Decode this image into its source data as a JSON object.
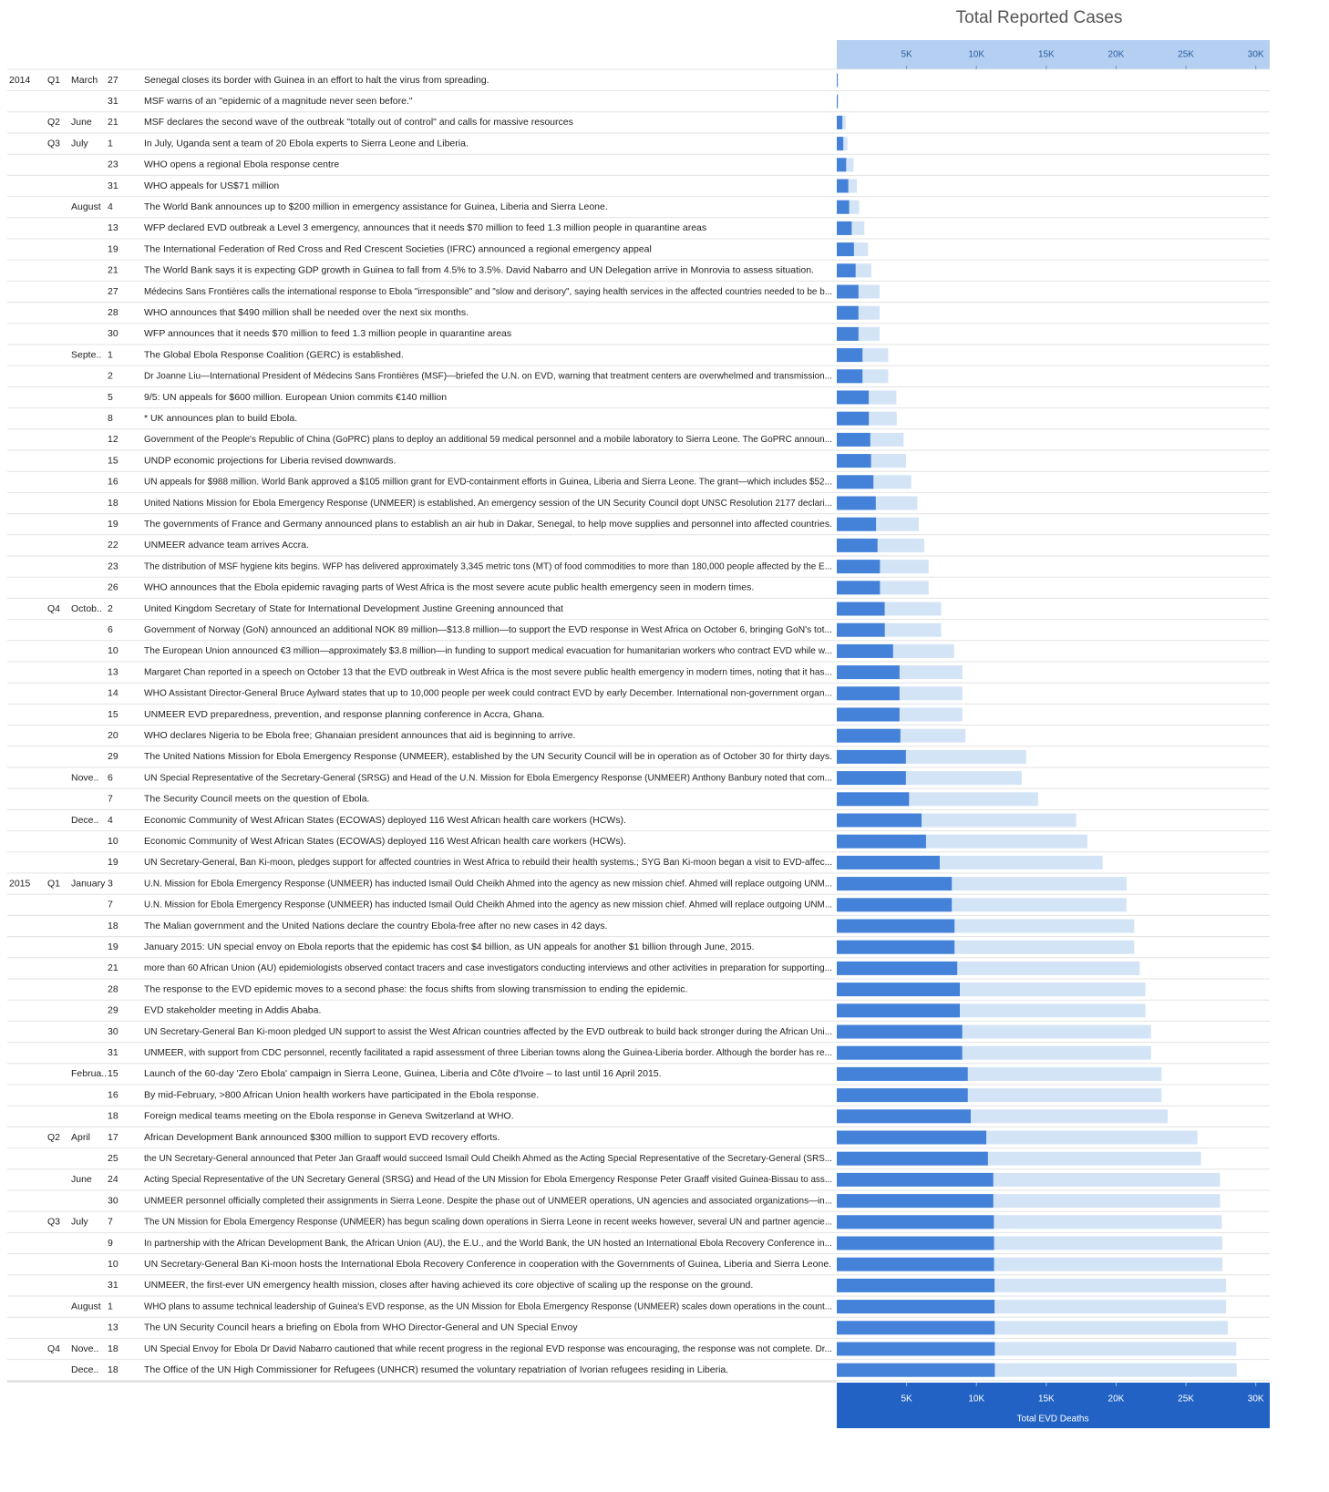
{
  "chart_data": {
    "type": "bar",
    "orientation": "horizontal",
    "rows": [
      {
        "year": "2014",
        "quarter": "Q1",
        "month": "March",
        "day": 27,
        "event": "Senegal closes its border with Guinea in an effort to halt the virus from spreading."
      },
      {
        "year": null,
        "quarter": null,
        "month": null,
        "day": 31,
        "event": "MSF warns of an \"epidemic of a magnitude never seen before.\""
      },
      {
        "year": null,
        "quarter": "Q2",
        "month": "June",
        "day": 21,
        "event": "MSF declares the second wave of the outbreak \"totally out of control\" and calls for massive resources"
      },
      {
        "year": null,
        "quarter": "Q3",
        "month": "July",
        "day": 1,
        "event": "In July, Uganda sent a team of 20 Ebola experts to Sierra Leone and Liberia."
      },
      {
        "year": null,
        "quarter": null,
        "month": null,
        "day": 23,
        "event": "WHO opens a regional Ebola response centre"
      },
      {
        "year": null,
        "quarter": null,
        "month": null,
        "day": 31,
        "event": "WHO appeals for US$71 million"
      },
      {
        "year": null,
        "quarter": null,
        "month": "August",
        "day": 4,
        "event": "The World Bank announces up to $200 million in emergency assistance for Guinea, Liberia and Sierra Leone."
      },
      {
        "year": null,
        "quarter": null,
        "month": null,
        "day": 13,
        "event": "WFP declared EVD outbreak a Level 3 emergency, announces that it needs $70 million to feed 1.3 million people in quarantine areas"
      },
      {
        "year": null,
        "quarter": null,
        "month": null,
        "day": 19,
        "event": "The International Federation of Red Cross and Red Crescent Societies (IFRC) announced a regional emergency appeal"
      },
      {
        "year": null,
        "quarter": null,
        "month": null,
        "day": 21,
        "event": "The World Bank says it is expecting GDP growth in Guinea to fall from 4.5% to 3.5%. David Nabarro and UN Delegation arrive in Monrovia to assess situation."
      },
      {
        "year": null,
        "quarter": null,
        "month": null,
        "day": 27,
        "event": "Médecins Sans Frontières calls the international response to Ebola \"irresponsible\" and \"slow and derisory\", saying health services in the affected countries needed to be b..."
      },
      {
        "year": null,
        "quarter": null,
        "month": null,
        "day": 28,
        "event": "WHO announces that $490 million shall be needed over the next six months."
      },
      {
        "year": null,
        "quarter": null,
        "month": null,
        "day": 30,
        "event": "WFP announces that it needs $70 million to feed 1.3 million people in quarantine areas"
      },
      {
        "year": null,
        "quarter": null,
        "month": "Septe..",
        "day": 1,
        "event": "The Global Ebola Response Coalition (GERC) is established."
      },
      {
        "year": null,
        "quarter": null,
        "month": null,
        "day": 2,
        "event": "Dr Joanne Liu—International President of Médecins Sans Frontières (MSF)—briefed the U.N. on EVD, warning that treatment centers are overwhelmed and transmission..."
      },
      {
        "year": null,
        "quarter": null,
        "month": null,
        "day": 5,
        "event": "9/5: UN appeals for $600 million. European Union commits €140 million"
      },
      {
        "year": null,
        "quarter": null,
        "month": null,
        "day": 8,
        "event": "* UK announces plan to build Ebola."
      },
      {
        "year": null,
        "quarter": null,
        "month": null,
        "day": 12,
        "event": "Government of the People's Republic of China (GoPRC) plans to deploy an additional 59 medical personnel and a mobile laboratory to Sierra Leone. The GoPRC announ..."
      },
      {
        "year": null,
        "quarter": null,
        "month": null,
        "day": 15,
        "event": "UNDP economic projections for Liberia revised downwards."
      },
      {
        "year": null,
        "quarter": null,
        "month": null,
        "day": 16,
        "event": "UN appeals for $988 million. World Bank approved a $105 million grant for EVD-containment efforts in Guinea, Liberia and Sierra Leone. The grant—which includes $52..."
      },
      {
        "year": null,
        "quarter": null,
        "month": null,
        "day": 18,
        "event": "United Nations Mission for Ebola Emergency Response (UNMEER) is established. An emergency session of the UN Security Council dopt UNSC Resolution 2177 declari..."
      },
      {
        "year": null,
        "quarter": null,
        "month": null,
        "day": 19,
        "event": "The governments of France and Germany announced plans to establish an air hub in Dakar, Senegal, to help move supplies and personnel into affected countries."
      },
      {
        "year": null,
        "quarter": null,
        "month": null,
        "day": 22,
        "event": "UNMEER advance team arrives Accra."
      },
      {
        "year": null,
        "quarter": null,
        "month": null,
        "day": 23,
        "event": "The distribution of MSF hygiene kits begins. WFP has delivered approximately 3,345 metric tons (MT) of food commodities to more than 180,000 people affected by the E..."
      },
      {
        "year": null,
        "quarter": null,
        "month": null,
        "day": 26,
        "event": "WHO announces that the Ebola epidemic ravaging parts of West Africa is the most severe acute public health emergency seen in modern times."
      },
      {
        "year": null,
        "quarter": "Q4",
        "month": "Octob..",
        "day": 2,
        "event": "United Kingdom Secretary of State for International Development Justine Greening announced that"
      },
      {
        "year": null,
        "quarter": null,
        "month": null,
        "day": 6,
        "event": "Government of Norway (GoN) announced an additional NOK 89 million—$13.8 million—to support the EVD response in West Africa on October 6, bringing GoN's tot..."
      },
      {
        "year": null,
        "quarter": null,
        "month": null,
        "day": 10,
        "event": "The European Union announced €3 million—approximately $3.8 million—in funding to support medical evacuation for humanitarian workers who contract EVD while w..."
      },
      {
        "year": null,
        "quarter": null,
        "month": null,
        "day": 13,
        "event": "Margaret Chan reported in a speech on October 13 that the EVD outbreak in West Africa is the most severe public health emergency in modern times, noting that it has..."
      },
      {
        "year": null,
        "quarter": null,
        "month": null,
        "day": 14,
        "event": "WHO Assistant Director-General Bruce Aylward states that up to 10,000 people per week could contract EVD by early December. International non-government organ..."
      },
      {
        "year": null,
        "quarter": null,
        "month": null,
        "day": 15,
        "event": "UNMEER EVD preparedness, prevention, and response planning conference in Accra, Ghana."
      },
      {
        "year": null,
        "quarter": null,
        "month": null,
        "day": 20,
        "event": "WHO declares Nigeria to be Ebola free; Ghanaian president announces that aid is beginning to arrive."
      },
      {
        "year": null,
        "quarter": null,
        "month": null,
        "day": 29,
        "event": "The United Nations Mission for Ebola Emergency Response (UNMEER), established by the UN Security Council will be in operation as of October 30 for thirty days."
      },
      {
        "year": null,
        "quarter": null,
        "month": "Nove..",
        "day": 6,
        "event": "UN Special Representative of the Secretary-General (SRSG) and Head of the U.N. Mission for Ebola Emergency Response (UNMEER) Anthony Banbury noted that com..."
      },
      {
        "year": null,
        "quarter": null,
        "month": null,
        "day": 7,
        "event": "The Security Council meets on the question of Ebola."
      },
      {
        "year": null,
        "quarter": null,
        "month": "Dece..",
        "day": 4,
        "event": "Economic Community of West African States (ECOWAS) deployed 116 West African health care workers (HCWs)."
      },
      {
        "year": null,
        "quarter": null,
        "month": null,
        "day": 10,
        "event": "Economic Community of West African States (ECOWAS) deployed 116 West African health care workers (HCWs)."
      },
      {
        "year": null,
        "quarter": null,
        "month": null,
        "day": 19,
        "event": "UN Secretary-General, Ban Ki-moon, pledges support for affected countries in West Africa to rebuild their health systems.; SYG Ban Ki-moon began a visit to EVD-affec..."
      },
      {
        "year": "2015",
        "quarter": "Q1",
        "month": "January",
        "day": 3,
        "event": "U.N. Mission for Ebola Emergency Response (UNMEER) has inducted Ismail Ould Cheikh Ahmed into the agency as new mission chief. Ahmed will replace outgoing UNM..."
      },
      {
        "year": null,
        "quarter": null,
        "month": null,
        "day": 7,
        "event": "U.N. Mission for Ebola Emergency Response (UNMEER) has inducted Ismail Ould Cheikh Ahmed into the agency as new mission chief. Ahmed will replace outgoing UNM..."
      },
      {
        "year": null,
        "quarter": null,
        "month": null,
        "day": 18,
        "event": "The Malian government and the United Nations declare the country Ebola-free after no new cases in 42 days."
      },
      {
        "year": null,
        "quarter": null,
        "month": null,
        "day": 19,
        "event": "January 2015: UN special envoy on Ebola reports that the epidemic has cost $4 billion, as UN appeals for another $1 billion through June, 2015."
      },
      {
        "year": null,
        "quarter": null,
        "month": null,
        "day": 21,
        "event": "more than 60 African Union (AU) epidemiologists observed contact tracers and case investigators conducting interviews and other activities in preparation for supporting..."
      },
      {
        "year": null,
        "quarter": null,
        "month": null,
        "day": 28,
        "event": "The response to the EVD epidemic moves to a second phase: the focus shifts from slowing transmission to ending the epidemic."
      },
      {
        "year": null,
        "quarter": null,
        "month": null,
        "day": 29,
        "event": "EVD stakeholder meeting in Addis Ababa."
      },
      {
        "year": null,
        "quarter": null,
        "month": null,
        "day": 30,
        "event": "UN Secretary-General Ban Ki-moon pledged UN support to assist the West African countries affected by the EVD outbreak to build back stronger during the African Uni..."
      },
      {
        "year": null,
        "quarter": null,
        "month": null,
        "day": 31,
        "event": "UNMEER, with support from CDC personnel, recently facilitated a rapid assessment of three Liberian towns along the Guinea-Liberia border. Although the border has re..."
      },
      {
        "year": null,
        "quarter": null,
        "month": "Februa..",
        "day": 15,
        "event": "Launch of the 60-day 'Zero Ebola' campaign in Sierra Leone, Guinea, Liberia and Côte d'Ivoire – to last until 16 April 2015."
      },
      {
        "year": null,
        "quarter": null,
        "month": null,
        "day": 16,
        "event": "By mid-February, >800 African Union health workers have participated in the Ebola response."
      },
      {
        "year": null,
        "quarter": null,
        "month": null,
        "day": 18,
        "event": "Foreign medical teams meeting on the Ebola response in Geneva Switzerland at WHO."
      },
      {
        "year": null,
        "quarter": "Q2",
        "month": "April",
        "day": 17,
        "event": "African Development Bank announced $300 million to support EVD recovery efforts."
      },
      {
        "year": null,
        "quarter": null,
        "month": null,
        "day": 25,
        "event": "the UN Secretary-General announced that Peter Jan Graaff would succeed Ismail Ould Cheikh Ahmed as the Acting Special Representative of the Secretary-General (SRS..."
      },
      {
        "year": null,
        "quarter": null,
        "month": "June",
        "day": 24,
        "event": "Acting Special Representative of the UN Secretary General (SRSG) and Head of the UN Mission for Ebola Emergency Response Peter Graaff visited Guinea-Bissau to ass..."
      },
      {
        "year": null,
        "quarter": null,
        "month": null,
        "day": 30,
        "event": "UNMEER personnel officially completed their assignments in Sierra Leone. Despite the phase out of UNMEER operations, UN agencies and associated organizations—in..."
      },
      {
        "year": null,
        "quarter": "Q3",
        "month": "July",
        "day": 7,
        "event": "The UN Mission for Ebola Emergency Response (UNMEER) has begun scaling down operations in Sierra Leone in recent weeks however, several UN and partner agencie..."
      },
      {
        "year": null,
        "quarter": null,
        "month": null,
        "day": 9,
        "event": "In partnership with the African Development Bank, the African Union (AU), the E.U., and the World Bank, the UN hosted an International Ebola Recovery Conference in..."
      },
      {
        "year": null,
        "quarter": null,
        "month": null,
        "day": 10,
        "event": "UN Secretary-General Ban Ki-moon hosts the International Ebola Recovery Conference in cooperation with the Governments of Guinea, Liberia and Sierra Leone."
      },
      {
        "year": null,
        "quarter": null,
        "month": null,
        "day": 31,
        "event": "UNMEER, the first-ever UN emergency health mission, closes after having achieved its core objective of scaling up the response on the ground."
      },
      {
        "year": null,
        "quarter": null,
        "month": "August",
        "day": 1,
        "event": "WHO plans to assume technical leadership of Guinea's EVD response, as the UN Mission for Ebola Emergency Response (UNMEER) scales down operations in the count..."
      },
      {
        "year": null,
        "quarter": null,
        "month": null,
        "day": 13,
        "event": "The UN Security Council hears a briefing on Ebola from WHO Director-General and UN Special Envoy"
      },
      {
        "year": null,
        "quarter": "Q4",
        "month": "Nove..",
        "day": 18,
        "event": "UN Special Envoy for Ebola Dr David Nabarro cautioned that while recent progress in the regional EVD response was encouraging, the response was not complete. Dr..."
      },
      {
        "year": null,
        "quarter": null,
        "month": "Dece..",
        "day": 18,
        "event": "The Office of the UN High Commissioner for Refugees (UNHCR) resumed the voluntary repatriation of Ivorian refugees residing in Liberia."
      }
    ],
    "series": [
      {
        "name": "Total Reported Cases",
        "color": "#d4e4f7",
        "values": [
          103,
          112,
          635,
          759,
          1201,
          1440,
          1603,
          1975,
          2240,
          2473,
          3069,
          3069,
          3069,
          3685,
          3685,
          4269,
          4293,
          4784,
          4963,
          5335,
          5762,
          5864,
          6263,
          6574,
          6574,
          7470,
          7478,
          8399,
          8997,
          8997,
          8997,
          9216,
          13567,
          13241,
          14413,
          17145,
          17942,
          19031,
          20747,
          20747,
          21296,
          21296,
          21689,
          22092,
          22092,
          22495,
          22495,
          23253,
          23253,
          23694,
          25826,
          26079,
          27443,
          27443,
          27562,
          27609,
          27609,
          27872,
          27872,
          28005,
          28607,
          28637
        ]
      },
      {
        "name": "Total EVD Deaths",
        "color": "#4482d9",
        "values": [
          66,
          70,
          399,
          467,
          672,
          826,
          887,
          1069,
          1229,
          1350,
          1552,
          1552,
          1552,
          1841,
          1841,
          2288,
          2296,
          2400,
          2453,
          2622,
          2793,
          2811,
          2917,
          3091,
          3091,
          3431,
          3439,
          4033,
          4493,
          4493,
          4493,
          4555,
          4951,
          4950,
          5177,
          6070,
          6388,
          7373,
          8235,
          8235,
          8429,
          8429,
          8626,
          8810,
          8810,
          8981,
          8981,
          9380,
          9380,
          9589,
          10704,
          10823,
          11207,
          11207,
          11247,
          11261,
          11261,
          11295,
          11295,
          11307,
          11314,
          11315
        ]
      }
    ],
    "xlim": [
      0,
      31000
    ],
    "xticks": [
      {
        "value": 5000,
        "label": "5K"
      },
      {
        "value": 10000,
        "label": "10K"
      },
      {
        "value": 15000,
        "label": "15K"
      },
      {
        "value": 20000,
        "label": "20K"
      },
      {
        "value": 25000,
        "label": "25K"
      },
      {
        "value": 30000,
        "label": "30K"
      }
    ]
  }
}
